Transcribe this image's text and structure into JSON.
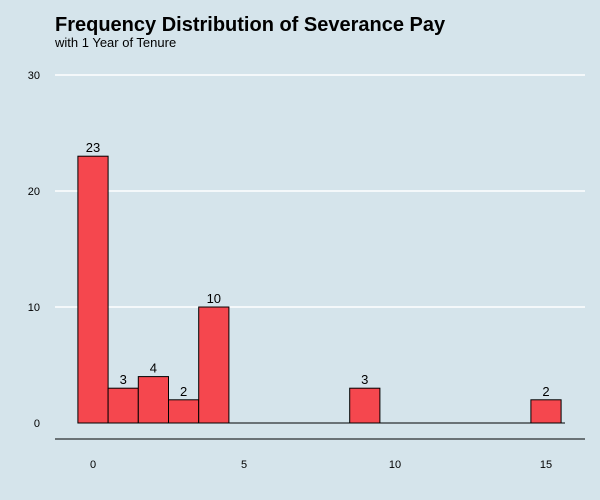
{
  "chart_data": {
    "type": "bar",
    "title": "Frequency Distribution of Severance Pay",
    "subtitle": "with 1 Year of Tenure",
    "xlabel": "",
    "ylabel": "",
    "bin_width": 1,
    "bins": [
      {
        "x": 0,
        "count": 23
      },
      {
        "x": 1,
        "count": 3
      },
      {
        "x": 2,
        "count": 4
      },
      {
        "x": 3,
        "count": 2
      },
      {
        "x": 4,
        "count": 10
      },
      {
        "x": 9,
        "count": 3
      },
      {
        "x": 15,
        "count": 2
      }
    ],
    "xlim": [
      -0.5,
      15.5
    ],
    "ylim": [
      0,
      30
    ],
    "x_ticks": [
      0,
      5,
      10,
      15
    ],
    "y_ticks": [
      0,
      10,
      20,
      30
    ],
    "grid": "horizontal",
    "legend": "none",
    "bar_color": "#f5474e",
    "bar_edge_color": "#000000",
    "background_color": "#d5e4eb",
    "gridline_color": "#ffffff"
  }
}
